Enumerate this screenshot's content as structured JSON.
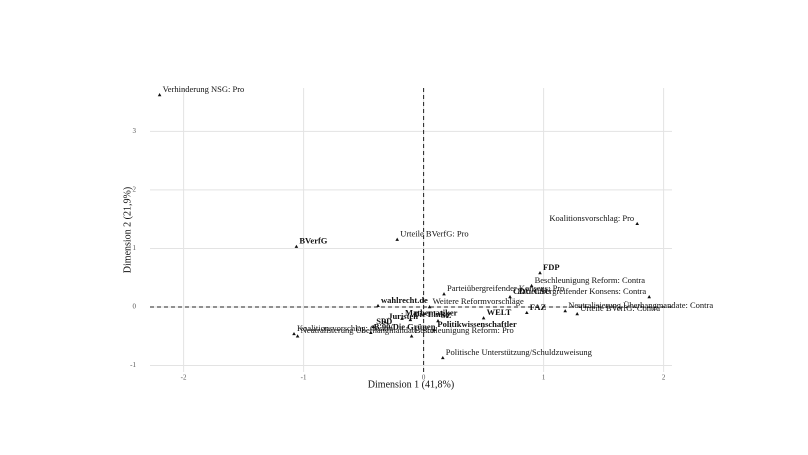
{
  "chart_data": {
    "type": "scatter",
    "xlabel": "Dimension 1 (41,8%)",
    "ylabel": "Dimension 2 (21,9%)",
    "xlim": [
      -2.28,
      2.07
    ],
    "ylim": [
      -1.11,
      3.74
    ],
    "xticks": [
      -2,
      -1,
      0,
      1,
      2
    ],
    "yticks": [
      -1,
      0,
      1,
      2,
      3
    ],
    "grid": true,
    "color": "#111",
    "points": [
      {
        "label": "Verhinderung NSG: Pro",
        "x": -2.2,
        "y": 3.62,
        "bold": false
      },
      {
        "label": "BVerfG",
        "x": -1.06,
        "y": 1.03,
        "bold": true
      },
      {
        "label": "Urteile BVerfG: Pro",
        "x": -0.22,
        "y": 1.15,
        "bold": false
      },
      {
        "label": "Koalitionsvorschlag: Pro",
        "x": 1.78,
        "y": 1.42,
        "bold": false
      },
      {
        "label": "FDP",
        "x": 0.97,
        "y": 0.58,
        "bold": true
      },
      {
        "label": "Beschleunigung Reform: Contra",
        "x": 0.9,
        "y": 0.36,
        "bold": false
      },
      {
        "label": "Parteiübergreifender Konsens: Pro",
        "x": 0.17,
        "y": 0.22,
        "bold": false
      },
      {
        "label": "CDU/CSU",
        "x": 0.72,
        "y": 0.17,
        "bold": true
      },
      {
        "label": "Parteiübergreifender Konsens: Contra",
        "x": 1.88,
        "y": 0.17,
        "bold": false
      },
      {
        "label": "Neutralisierung Überhangmandate: Contra",
        "x": 1.18,
        "y": -0.07,
        "bold": false
      },
      {
        "label": "wahlrecht.de",
        "x": -0.38,
        "y": 0.02,
        "bold": true
      },
      {
        "label": "Weitere Reformvorschläge",
        "x": 0.05,
        "y": 0.0,
        "bold": false
      },
      {
        "label": "WELT",
        "x": 0.5,
        "y": -0.19,
        "bold": true
      },
      {
        "label": "FAZ",
        "x": 0.86,
        "y": -0.1,
        "bold": true
      },
      {
        "label": "Urteile BVerfG: Contra",
        "x": 1.28,
        "y": -0.12,
        "bold": false
      },
      {
        "label": "Mathematiker",
        "x": -0.18,
        "y": -0.2,
        "bold": true
      },
      {
        "label": "SZ",
        "x": 0.12,
        "y": -0.24,
        "bold": true
      },
      {
        "label": "Juristen",
        "x": -0.32,
        "y": -0.26,
        "bold": true
      },
      {
        "label": "Die Linke",
        "x": -0.11,
        "y": -0.22,
        "bold": true
      },
      {
        "label": "SPD",
        "x": -0.42,
        "y": -0.34,
        "bold": true
      },
      {
        "label": "Politikwissenschaftler",
        "x": 0.09,
        "y": -0.39,
        "bold": true
      },
      {
        "label": "Koalitionsvorschlag: Contra",
        "x": -1.08,
        "y": -0.46,
        "bold": false
      },
      {
        "label": "B'90/Die Grünen",
        "x": -0.44,
        "y": -0.44,
        "bold": true
      },
      {
        "label": "Beschleunigung Reform: Pro",
        "x": -0.1,
        "y": -0.5,
        "bold": false
      },
      {
        "label": "Neutralisierung Überhangmandate: Pro",
        "x": -1.05,
        "y": -0.5,
        "bold": false
      },
      {
        "label": "Politische Unterstützung/Schuldzuweisung",
        "x": 0.16,
        "y": -0.87,
        "bold": false
      }
    ]
  }
}
